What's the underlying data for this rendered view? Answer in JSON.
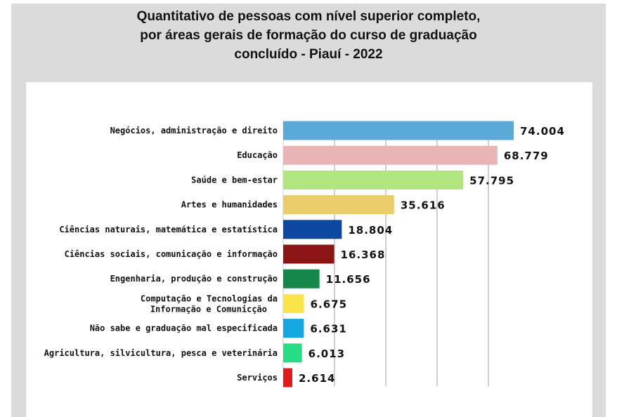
{
  "title_lines": [
    "Quantitativo de pessoas com nível superior completo,",
    "por áreas gerais de formação do curso de graduação",
    "concluído - Piauí - 2022"
  ],
  "chart_data": {
    "type": "bar",
    "orientation": "horizontal",
    "title": "Quantitativo de pessoas com nível superior completo, por áreas gerais de formação do curso de graduação concluído - Piauí - 2022",
    "categories": [
      "Negócios, administração e direito",
      "Educação",
      "Saúde e bem-estar",
      "Artes e humanidades",
      "Ciências naturais, matemática e estatística",
      "Ciências sociais, comunicação e informação",
      "Engenharia, produção e construção",
      "Computação e Tecnologias da\nInformação e Comunicção",
      "Não sabe e graduação mal especificada",
      "Agricultura, silvicultura, pesca e veterinária",
      "Serviços"
    ],
    "values": [
      74004,
      68779,
      57795,
      35616,
      18804,
      16368,
      11656,
      6675,
      6631,
      6013,
      2614
    ],
    "value_labels": [
      "74.004",
      "68.779",
      "57.795",
      "35.616",
      "18.804",
      "16.368",
      "11.656",
      "6.675",
      "6.631",
      "6.013",
      "2.614"
    ],
    "colors": [
      "#5aa9d6",
      "#e8b4b6",
      "#b1e57f",
      "#e9cd6b",
      "#0d47a1",
      "#8b1414",
      "#15874a",
      "#fbe54a",
      "#14a6df",
      "#27dc84",
      "#e01b1b"
    ],
    "grid": true,
    "xlabel": "",
    "ylabel": ""
  }
}
